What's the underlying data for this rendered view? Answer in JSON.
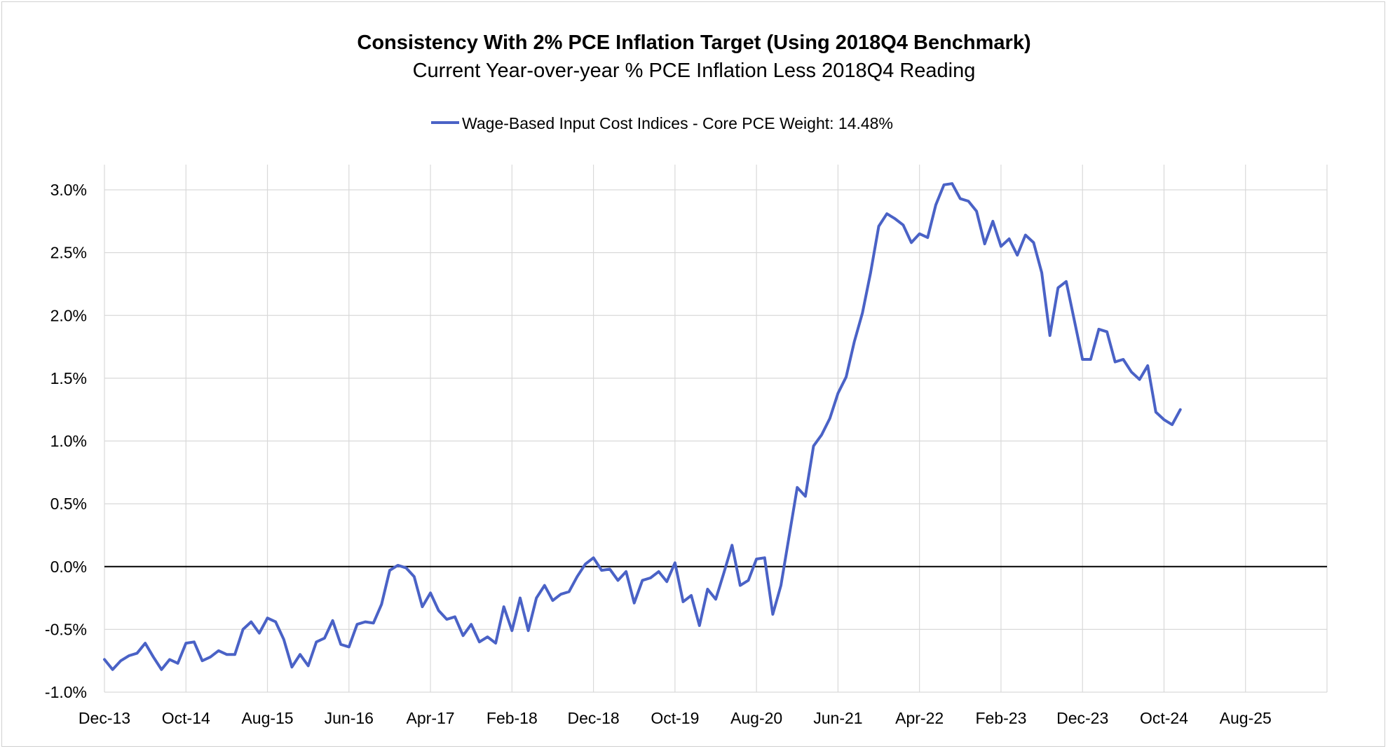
{
  "chart_data": {
    "type": "line",
    "title": "Consistency With 2% PCE Inflation Target (Using 2018Q4 Benchmark)",
    "subtitle": "Current Year-over-year % PCE Inflation Less 2018Q4 Reading",
    "xlabel": "",
    "ylabel": "",
    "ylim": [
      -1.0,
      3.0
    ],
    "y_ticks": [
      -1.0,
      -0.5,
      0.0,
      0.5,
      1.0,
      1.5,
      2.0,
      2.5,
      3.0
    ],
    "y_tick_labels": [
      "-1.0%",
      "-0.5%",
      "0.0%",
      "0.5%",
      "1.0%",
      "1.5%",
      "2.0%",
      "2.5%",
      "3.0%"
    ],
    "x_tick_labels": [
      "Dec-13",
      "Oct-14",
      "Aug-15",
      "Jun-16",
      "Apr-17",
      "Feb-18",
      "Dec-18",
      "Oct-19",
      "Aug-20",
      "Jun-21",
      "Apr-22",
      "Feb-23",
      "Dec-23",
      "Oct-24",
      "Aug-25"
    ],
    "x_tick_step_months": 10,
    "x_total_months": 150,
    "grid": true,
    "legend_position": "top",
    "series": [
      {
        "name": "Wage-Based Input Cost Indices - Core PCE Weight: 14.48%",
        "color": "#4a62c6",
        "start_label": "Dec-13",
        "values": [
          -0.74,
          -0.82,
          -0.75,
          -0.71,
          -0.69,
          -0.61,
          -0.72,
          -0.82,
          -0.74,
          -0.77,
          -0.61,
          -0.6,
          -0.75,
          -0.72,
          -0.67,
          -0.7,
          -0.7,
          -0.5,
          -0.44,
          -0.53,
          -0.41,
          -0.44,
          -0.58,
          -0.8,
          -0.7,
          -0.79,
          -0.6,
          -0.57,
          -0.43,
          -0.62,
          -0.64,
          -0.46,
          -0.44,
          -0.45,
          -0.3,
          -0.03,
          0.01,
          -0.01,
          -0.08,
          -0.32,
          -0.21,
          -0.35,
          -0.42,
          -0.4,
          -0.55,
          -0.46,
          -0.6,
          -0.56,
          -0.61,
          -0.32,
          -0.51,
          -0.25,
          -0.51,
          -0.25,
          -0.15,
          -0.27,
          -0.22,
          -0.2,
          -0.08,
          0.02,
          0.07,
          -0.03,
          -0.02,
          -0.11,
          -0.04,
          -0.29,
          -0.11,
          -0.09,
          -0.04,
          -0.12,
          0.03,
          -0.28,
          -0.23,
          -0.47,
          -0.18,
          -0.26,
          -0.05,
          0.17,
          -0.15,
          -0.11,
          0.06,
          0.07,
          -0.38,
          -0.15,
          0.24,
          0.63,
          0.56,
          0.96,
          1.05,
          1.18,
          1.38,
          1.51,
          1.79,
          2.02,
          2.34,
          2.71,
          2.81,
          2.77,
          2.72,
          2.58,
          2.65,
          2.62,
          2.88,
          3.04,
          3.05,
          2.93,
          2.91,
          2.83,
          2.57,
          2.75,
          2.55,
          2.61,
          2.48,
          2.64,
          2.58,
          2.34,
          1.84,
          2.22,
          2.27,
          1.96,
          1.65,
          1.65,
          1.89,
          1.87,
          1.63,
          1.65,
          1.55,
          1.49,
          1.6,
          1.23,
          1.17,
          1.13,
          1.25
        ]
      }
    ]
  }
}
